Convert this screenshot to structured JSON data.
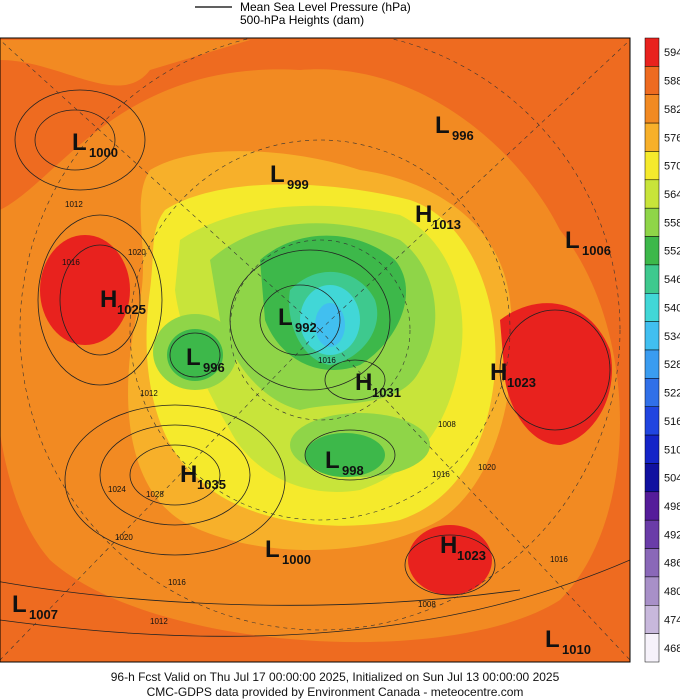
{
  "legend": {
    "line_label": "Mean Sea Level Pressure (hPa)",
    "fill_label": "500-hPa Heights (dam)"
  },
  "colorbar": [
    {
      "label": "594",
      "color": "#e8221e"
    },
    {
      "label": "588",
      "color": "#ee6b20"
    },
    {
      "label": "582",
      "color": "#f28a22"
    },
    {
      "label": "576",
      "color": "#f7b02a"
    },
    {
      "label": "570",
      "color": "#f5ea2c"
    },
    {
      "label": "564",
      "color": "#c8e43a"
    },
    {
      "label": "558",
      "color": "#8fd548"
    },
    {
      "label": "552",
      "color": "#3db84a"
    },
    {
      "label": "546",
      "color": "#3ec98e"
    },
    {
      "label": "540",
      "color": "#41d7d7"
    },
    {
      "label": "534",
      "color": "#41bff0"
    },
    {
      "label": "528",
      "color": "#3a9cf0"
    },
    {
      "label": "522",
      "color": "#3070e8"
    },
    {
      "label": "516",
      "color": "#2045e0"
    },
    {
      "label": "510",
      "color": "#1424c8"
    },
    {
      "label": "504",
      "color": "#1010a0"
    },
    {
      "label": "498",
      "color": "#551c9a"
    },
    {
      "label": "492",
      "color": "#6a3ca8"
    },
    {
      "label": "486",
      "color": "#8a68b8"
    },
    {
      "label": "480",
      "color": "#a890c8"
    },
    {
      "label": "474",
      "color": "#c8b8dc"
    },
    {
      "label": "468",
      "color": "#f6f2fa"
    }
  ],
  "centers": [
    {
      "type": "L",
      "value": "1000"
    },
    {
      "type": "L",
      "value": "999"
    },
    {
      "type": "L",
      "value": "996"
    },
    {
      "type": "H",
      "value": "1013"
    },
    {
      "type": "L",
      "value": "1006"
    },
    {
      "type": "H",
      "value": "1025"
    },
    {
      "type": "L",
      "value": "992"
    },
    {
      "type": "L",
      "value": "996"
    },
    {
      "type": "H",
      "value": "1031"
    },
    {
      "type": "H",
      "value": "1023"
    },
    {
      "type": "L",
      "value": "998"
    },
    {
      "type": "H",
      "value": "1035"
    },
    {
      "type": "H",
      "value": "1023"
    },
    {
      "type": "L",
      "value": "1000"
    },
    {
      "type": "L",
      "value": "1007"
    },
    {
      "type": "L",
      "value": "1010"
    }
  ],
  "isobar_labels": [
    "1012",
    "1016",
    "1020",
    "1012",
    "1024",
    "1028",
    "1020",
    "1016",
    "1012",
    "1008",
    "1016",
    "1020",
    "1016",
    "1016",
    "1008"
  ],
  "footer": {
    "line1": "96-h Fcst Valid on Thu Jul 17 00:00:00 2025, Initialized on Sun Jul 13 00:00:00 2025",
    "line2": "CMC-GDPS data provided by Environment Canada - meteocentre.com"
  }
}
